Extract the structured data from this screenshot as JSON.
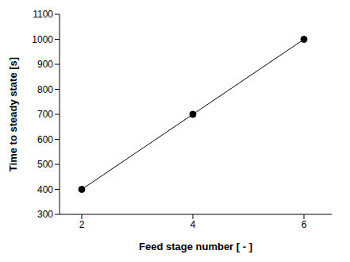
{
  "chart_data": {
    "type": "line",
    "x": [
      2,
      4,
      6
    ],
    "values": [
      400,
      700,
      1000
    ],
    "xlim": [
      1.6,
      6.5
    ],
    "xticks": [
      2,
      4,
      6
    ],
    "ylim": [
      300,
      1100
    ],
    "yticks": [
      300,
      400,
      500,
      600,
      700,
      800,
      900,
      1000,
      1100
    ],
    "xlabel": "Feed stage number [ - ]",
    "ylabel": "Time to steady state [s]",
    "color": "#000000",
    "marker": "circle",
    "grid": false
  }
}
